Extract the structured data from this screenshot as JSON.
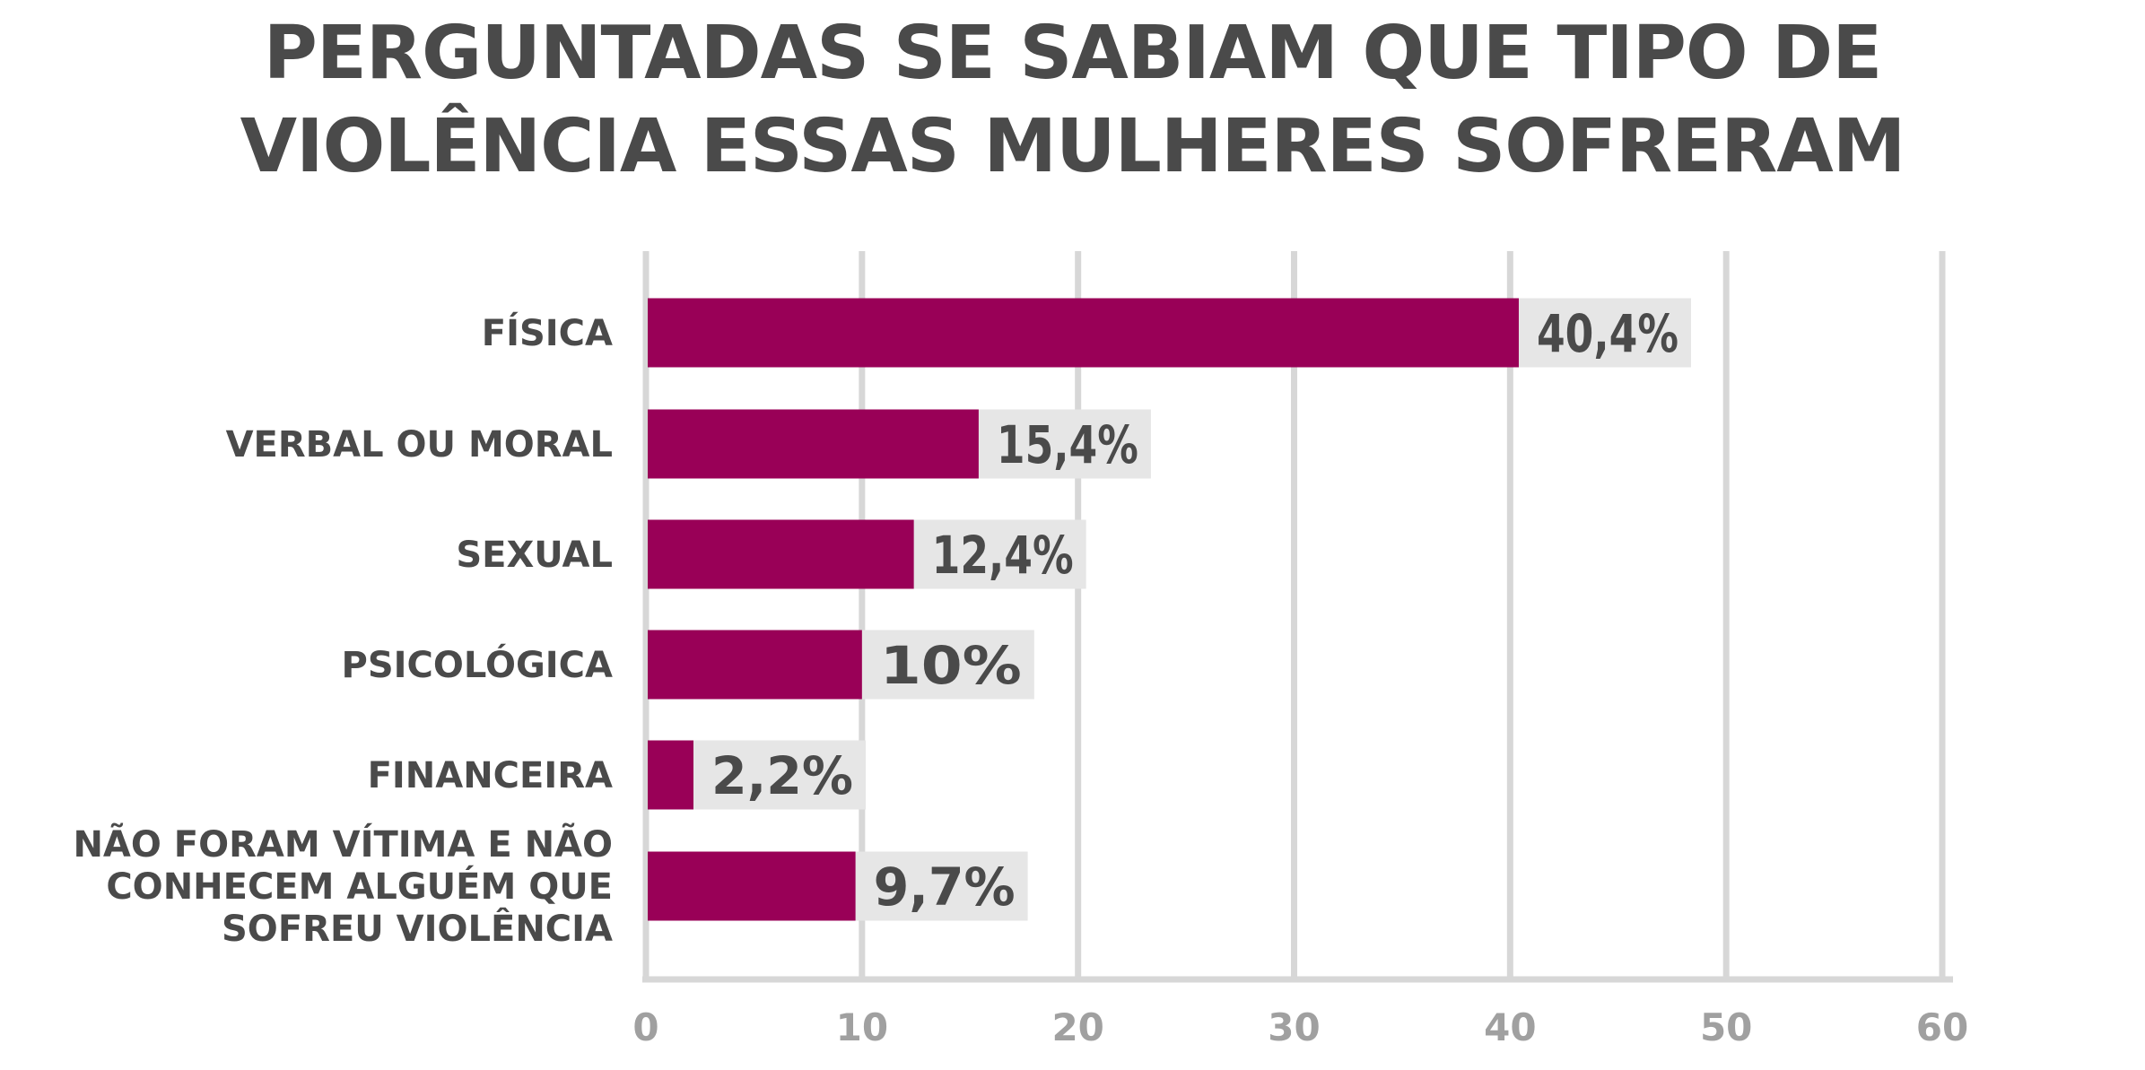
{
  "chart_data": {
    "type": "bar",
    "orientation": "horizontal",
    "title_lines": [
      "PERGUNTADAS SE SABIAM QUE TIPO DE",
      "VIOLÊNCIA ESSAS MULHERES SOFRERAM"
    ],
    "categories": [
      [
        "FÍSICA"
      ],
      [
        "VERBAL OU MORAL"
      ],
      [
        "SEXUAL"
      ],
      [
        "PSICOLÓGICA"
      ],
      [
        "FINANCEIRA"
      ],
      [
        "NÃO FORAM VÍTIMA E NÃO",
        "CONHECEM ALGUÉM QUE",
        "SOFREU VIOLÊNCIA"
      ]
    ],
    "values": [
      40.4,
      15.4,
      12.4,
      10,
      2.2,
      9.7
    ],
    "value_labels": [
      "40,4%",
      "15,4%",
      "12,4%",
      "10%",
      "2,2%",
      "9,7%"
    ],
    "xlim": [
      0,
      60
    ],
    "xticks": [
      "0",
      "10",
      "20",
      "30",
      "40",
      "50",
      "60"
    ],
    "grid": true,
    "colors": {
      "bar": "#990057",
      "label_box": "#e6e6e6",
      "grid": "#d7d7d7",
      "text": "#4a4a4a",
      "tick_text": "#a0a0a0"
    }
  }
}
